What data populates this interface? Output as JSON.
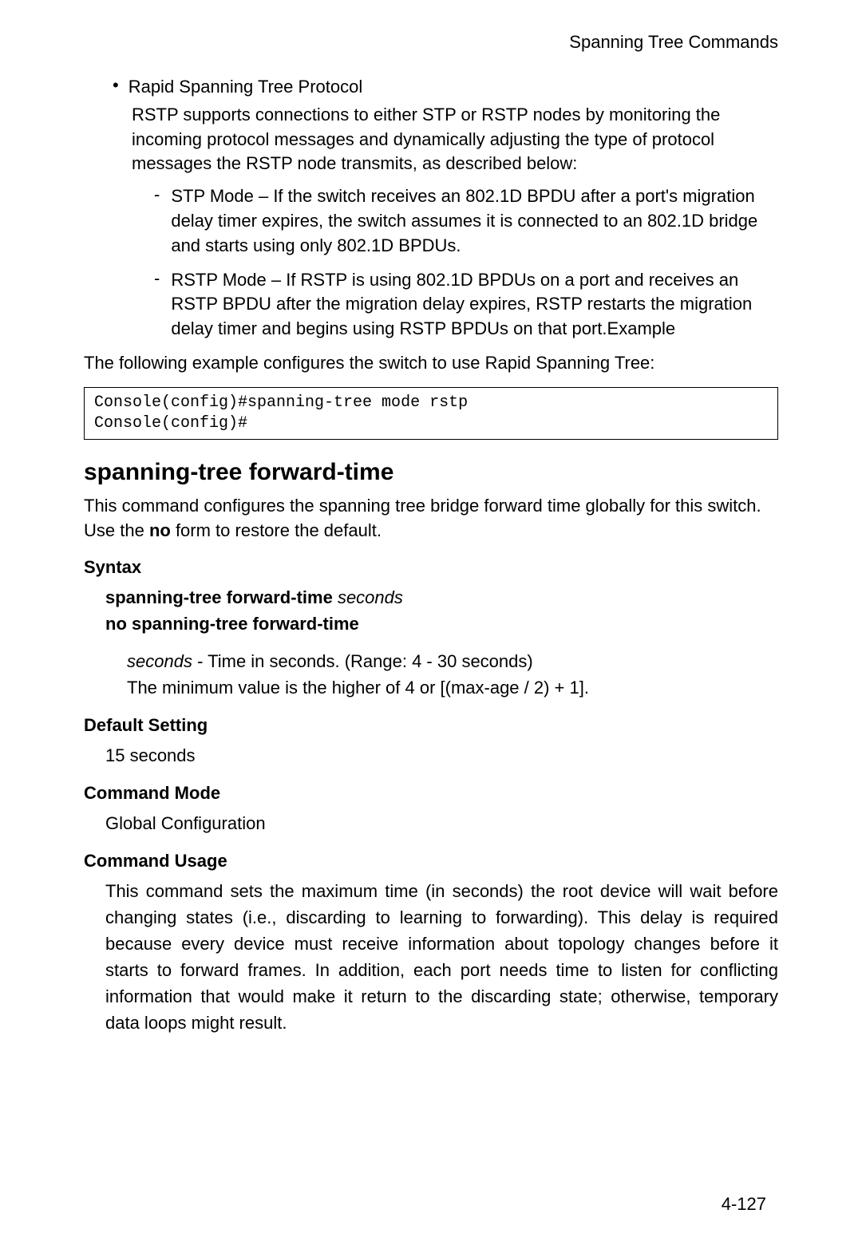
{
  "header": {
    "title": "Spanning Tree Commands"
  },
  "topBullet": {
    "title": "Rapid Spanning Tree Protocol",
    "description": "RSTP supports connections to either STP or RSTP nodes by monitoring the incoming protocol messages and dynamically adjusting the type of protocol messages the RSTP node transmits, as described below:"
  },
  "dashItems": [
    "STP Mode – If the switch receives an 802.1D BPDU after a port's migration delay timer expires, the switch assumes it is connected to an 802.1D bridge and starts using only 802.1D BPDUs.",
    "RSTP Mode – If RSTP is using 802.1D BPDUs on a port and receives an RSTP BPDU after the migration delay expires, RSTP restarts the migration delay timer and begins using RSTP BPDUs on that port.Example"
  ],
  "exampleIntro": "The following example configures the switch to use Rapid Spanning Tree:",
  "codeBlock": "Console(config)#spanning-tree mode rstp\nConsole(config)#",
  "section": {
    "title": "spanning-tree forward-time",
    "descPart1": "This command configures the spanning tree bridge forward time globally for this switch. Use the ",
    "descBold": "no",
    "descPart2": " form to restore the default."
  },
  "syntax": {
    "label": "Syntax",
    "line1Bold": "spanning-tree forward-time",
    "line1Italic": "seconds",
    "line2": "no spanning-tree forward-time",
    "paramItalic": "seconds",
    "paramText": " - Time in seconds. (Range: 4 - 30 seconds)",
    "paramLine2": "The minimum value is the higher of 4 or [(max-age / 2) + 1]."
  },
  "defaultSetting": {
    "label": "Default Setting",
    "value": "15 seconds"
  },
  "commandMode": {
    "label": "Command Mode",
    "value": "Global Configuration"
  },
  "commandUsage": {
    "label": "Command Usage",
    "text": "This command sets the maximum time (in seconds) the root device will wait before changing states (i.e., discarding to learning to forwarding). This delay is required because every device must receive information about topology changes before it starts to forward frames. In addition, each port needs time to listen for conflicting information that would make it return to the discarding state; otherwise, temporary data loops might result."
  },
  "pageNumber": "4-127"
}
